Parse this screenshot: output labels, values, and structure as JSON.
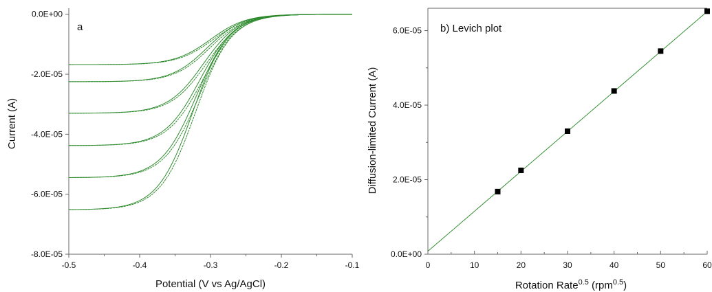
{
  "chart_data": [
    {
      "panel_label": "a",
      "type": "line",
      "xlabel": "Potential (V vs Ag/AgCl)",
      "ylabel": "Current (A)",
      "xlim": [
        -0.5,
        -0.1
      ],
      "ylim": [
        -8e-05,
        2e-06
      ],
      "x_ticks": [
        -0.5,
        -0.4,
        -0.3,
        -0.2,
        -0.1
      ],
      "x_tick_labels": [
        "-0.5",
        "-0.4",
        "-0.3",
        "-0.2",
        "-0.1"
      ],
      "y_ticks": [
        0,
        -2e-05,
        -4e-05,
        -6e-05,
        -8e-05
      ],
      "y_tick_labels": [
        "0.0E+00",
        "-2.0E-05",
        "-4.0E-05",
        "-6.0E-05",
        "-8.0E-05"
      ],
      "color": "#2e8b2e",
      "series": [
        {
          "limiting_current": -1.68e-05,
          "half_wave_potential": -0.3
        },
        {
          "limiting_current": -2.25e-05,
          "half_wave_potential": -0.305
        },
        {
          "limiting_current": -3.3e-05,
          "half_wave_potential": -0.31
        },
        {
          "limiting_current": -4.38e-05,
          "half_wave_potential": -0.315
        },
        {
          "limiting_current": -5.45e-05,
          "half_wave_potential": -0.32
        },
        {
          "limiting_current": -6.52e-05,
          "half_wave_potential": -0.325
        }
      ]
    },
    {
      "panel_label": "b) Levich plot",
      "type": "scatter",
      "xlabel_base": "Rotation Rate",
      "xlabel_sup1": "0.5",
      "xlabel_mid": " (rpm",
      "xlabel_sup2": "0.5",
      "xlabel_end": ")",
      "ylabel": "Diffusion-limited Current (A)",
      "xlim": [
        0,
        60
      ],
      "ylim": [
        0,
        6.6e-05
      ],
      "x_ticks": [
        0,
        10,
        20,
        30,
        40,
        50,
        60
      ],
      "x_tick_labels": [
        "0",
        "10",
        "20",
        "30",
        "40",
        "50",
        "60"
      ],
      "y_ticks": [
        0,
        2e-05,
        4e-05,
        6e-05
      ],
      "y_tick_labels": [
        "0.0E+00",
        "2.0E-05",
        "4.0E-05",
        "6.0E-05"
      ],
      "x": [
        15,
        20,
        30,
        40,
        50,
        60
      ],
      "y": [
        1.68e-05,
        2.25e-05,
        3.3e-05,
        4.38e-05,
        5.45e-05,
        6.52e-05
      ],
      "fit": {
        "slope": 1.072e-06,
        "intercept": 8e-07
      },
      "marker_color": "#000000",
      "line_color": "#2e8b2e"
    }
  ]
}
